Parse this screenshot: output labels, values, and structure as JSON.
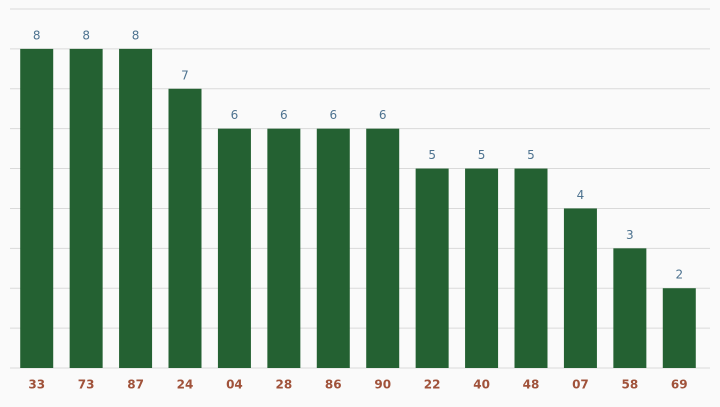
{
  "chart_data": {
    "type": "bar",
    "categories": [
      "33",
      "73",
      "87",
      "24",
      "04",
      "28",
      "86",
      "90",
      "22",
      "40",
      "48",
      "07",
      "58",
      "69"
    ],
    "values": [
      8,
      8,
      8,
      7,
      6,
      6,
      6,
      6,
      5,
      5,
      5,
      4,
      3,
      2
    ],
    "color": "#246132",
    "ylim": [
      0,
      9
    ],
    "yticks": [
      0,
      1,
      2,
      3,
      4,
      5,
      6,
      7,
      8,
      9
    ],
    "grid": true
  }
}
